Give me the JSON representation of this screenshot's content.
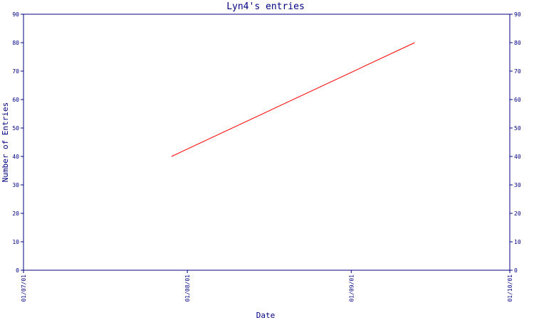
{
  "chart_data": {
    "type": "line",
    "title": "Lyn4's entries",
    "xlabel": "Date",
    "ylabel": "Number of Entries",
    "x_ticks": [
      "01/07/01",
      "01/08/01",
      "01/09/01",
      "01/10/01"
    ],
    "x_range": [
      "01/07/01",
      "01/10/01"
    ],
    "y_ticks": [
      0,
      10,
      20,
      30,
      40,
      50,
      60,
      70,
      80,
      90
    ],
    "ylim": [
      0,
      90
    ],
    "y_axis_mirrored_right": true,
    "grid": false,
    "series": [
      {
        "color": "#ff0000",
        "points": [
          {
            "x": "2001-07-29",
            "y": 40
          },
          {
            "x": "2001-09-13",
            "y": 80
          }
        ]
      }
    ]
  },
  "colors": {
    "axis": "#000080",
    "text": "#000080",
    "line": "#ff0000",
    "background": "#ffffff"
  }
}
